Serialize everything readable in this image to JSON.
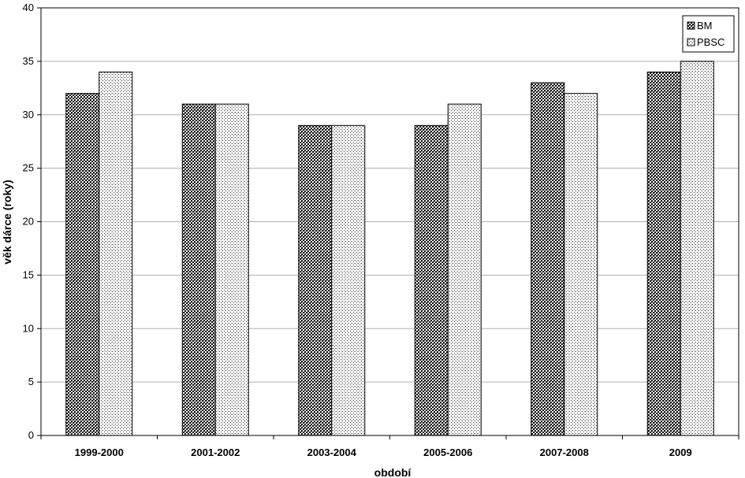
{
  "chart_data": {
    "type": "bar",
    "title": "",
    "xlabel": "období",
    "ylabel": "věk dárce (roky)",
    "categories": [
      "1999-2000",
      "2001-2002",
      "2003-2004",
      "2005-2006",
      "2007-2008",
      "2009"
    ],
    "series": [
      {
        "name": "BM",
        "values": [
          32,
          31,
          29,
          29,
          33,
          34
        ],
        "pattern": "dense-checker"
      },
      {
        "name": "PBSC",
        "values": [
          34,
          31,
          29,
          31,
          32,
          35
        ],
        "pattern": "light-dots"
      }
    ],
    "ylim": [
      0,
      40
    ],
    "yticks": [
      0,
      5,
      10,
      15,
      20,
      25,
      30,
      35,
      40
    ],
    "grid": true,
    "legend_position": "top-right",
    "colors": {
      "gridline": "#b0b0b0",
      "bar_outline": "#000000"
    }
  }
}
